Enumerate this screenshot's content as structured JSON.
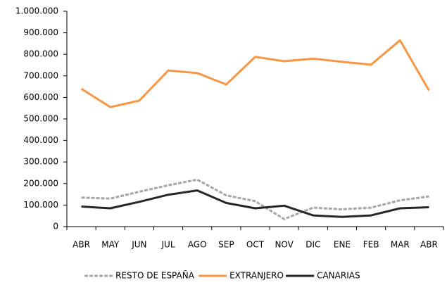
{
  "chart_data": {
    "type": "line",
    "categories": [
      "ABR",
      "MAY",
      "JUN",
      "JUL",
      "AGO",
      "SEP",
      "OCT",
      "NOV",
      "DIC",
      "ENE",
      "FEB",
      "MAR",
      "ABR"
    ],
    "series": [
      {
        "name": "RESTO DE ESPAÑA",
        "color": "#a6a6a6",
        "dash": true,
        "values": [
          135000,
          130000,
          162000,
          192000,
          218000,
          145000,
          118000,
          35000,
          88000,
          80000,
          88000,
          122000,
          140000
        ]
      },
      {
        "name": "EXTRANJERO",
        "color": "#f79646",
        "dash": false,
        "values": [
          640000,
          555000,
          585000,
          725000,
          713000,
          660000,
          788000,
          768000,
          780000,
          765000,
          752000,
          865000,
          632000
        ]
      },
      {
        "name": "CANARIAS",
        "color": "#262626",
        "dash": false,
        "values": [
          93000,
          85000,
          115000,
          148000,
          168000,
          110000,
          85000,
          97000,
          52000,
          45000,
          52000,
          85000,
          90000
        ]
      }
    ],
    "ylim": [
      0,
      1000000
    ],
    "yticks": [
      0,
      {
        "value": 100000,
        "label": "100.000"
      },
      {
        "value": 200000,
        "label": "200.000"
      },
      {
        "value": 300000,
        "label": "300.000"
      },
      {
        "value": 400000,
        "label": "400.000"
      },
      {
        "value": 500000,
        "label": "500.000"
      },
      {
        "value": 600000,
        "label": "600.000"
      },
      {
        "value": 700000,
        "label": "700.000"
      },
      {
        "value": 800000,
        "label": "800.000"
      },
      {
        "value": 900000,
        "label": "900.000"
      },
      {
        "value": 1000000,
        "label": "1.000.000"
      }
    ],
    "grid": false,
    "legend": "bottom"
  }
}
